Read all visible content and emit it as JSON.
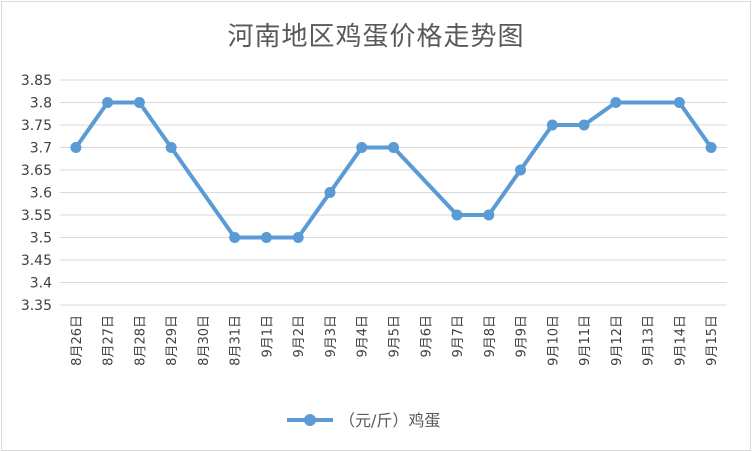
{
  "chart_data": {
    "type": "line",
    "title": "河南地区鸡蛋价格走势图",
    "categories": [
      "8月26日",
      "8月27日",
      "8月28日",
      "8月29日",
      "8月30日",
      "8月31日",
      "9月1日",
      "9月2日",
      "9月3日",
      "9月4日",
      "9月5日",
      "9月6日",
      "9月7日",
      "9月8日",
      "9月9日",
      "9月10日",
      "9月11日",
      "9月12日",
      "9月13日",
      "9月14日",
      "9月15日"
    ],
    "series": [
      {
        "name": "（元/斤）鸡蛋",
        "points": [
          {
            "x": "8月26日",
            "y": 3.7
          },
          {
            "x": "8月27日",
            "y": 3.8
          },
          {
            "x": "8月28日",
            "y": 3.8
          },
          {
            "x": "8月29日",
            "y": 3.7
          },
          {
            "x": "8月31日",
            "y": 3.5
          },
          {
            "x": "9月1日",
            "y": 3.5
          },
          {
            "x": "9月2日",
            "y": 3.5
          },
          {
            "x": "9月3日",
            "y": 3.6
          },
          {
            "x": "9月4日",
            "y": 3.7
          },
          {
            "x": "9月5日",
            "y": 3.7
          },
          {
            "x": "9月7日",
            "y": 3.55
          },
          {
            "x": "9月8日",
            "y": 3.55
          },
          {
            "x": "9月9日",
            "y": 3.65
          },
          {
            "x": "9月10日",
            "y": 3.75
          },
          {
            "x": "9月11日",
            "y": 3.75
          },
          {
            "x": "9月12日",
            "y": 3.8
          },
          {
            "x": "9月14日",
            "y": 3.8
          },
          {
            "x": "9月15日",
            "y": 3.7
          }
        ]
      }
    ],
    "yticks": [
      "3.35",
      "3.4",
      "3.45",
      "3.5",
      "3.55",
      "3.6",
      "3.65",
      "3.7",
      "3.75",
      "3.8",
      "3.85"
    ],
    "ylim": [
      3.35,
      3.85
    ],
    "grid": true,
    "legend_position": "bottom",
    "colors": {
      "series": "#5b9bd5",
      "grid": "#d9d9d9",
      "text": "#404040",
      "title": "#595959"
    }
  }
}
